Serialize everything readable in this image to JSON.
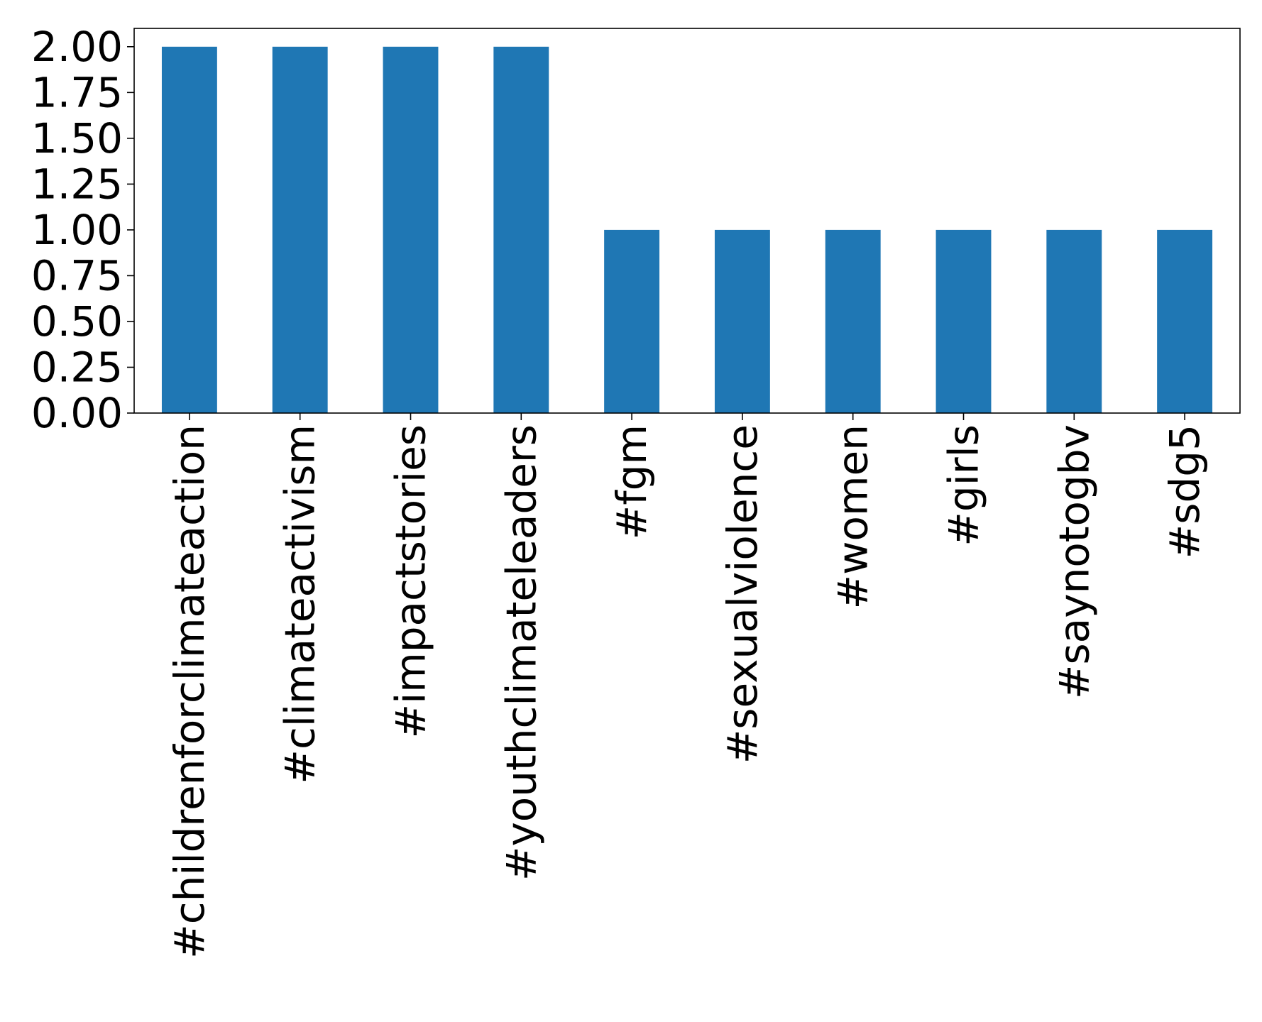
{
  "chart_data": {
    "type": "bar",
    "title": "",
    "xlabel": "",
    "ylabel": "",
    "categories": [
      "#childrenforclimateaction",
      "#climateactivism",
      "#impactstories",
      "#youthclimateleaders",
      "#fgm",
      "#sexualviolence",
      "#women",
      "#girls",
      "#saynotogbv",
      "#sdg5"
    ],
    "values": [
      2,
      2,
      2,
      2,
      1,
      1,
      1,
      1,
      1,
      1
    ],
    "ylim": [
      0,
      2.1
    ],
    "yticks": [
      0,
      0.25,
      0.5,
      0.75,
      1.0,
      1.25,
      1.5,
      1.75,
      2.0
    ],
    "ytick_labels": [
      "0.00",
      "0.25",
      "0.50",
      "0.75",
      "1.00",
      "1.25",
      "1.50",
      "1.75",
      "2.00"
    ],
    "bar_color": "#1f77b4",
    "grid": false,
    "legend": "none"
  }
}
